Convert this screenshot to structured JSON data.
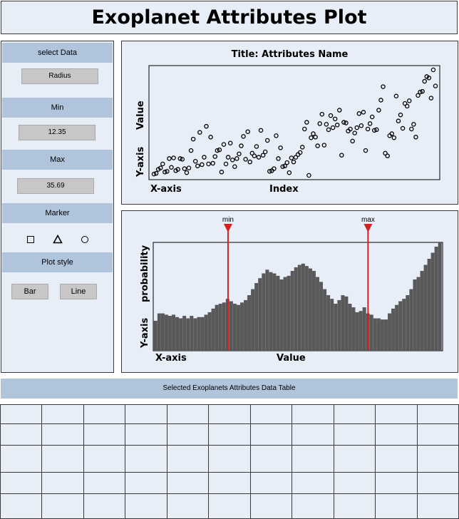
{
  "app": {
    "title": "Exoplanet Attributes Plot"
  },
  "controls": {
    "select_data": {
      "label": "select Data",
      "value": "Radius"
    },
    "min": {
      "label": "Min",
      "value": "12.35"
    },
    "max": {
      "label": "Max",
      "value": "35.69"
    },
    "marker": {
      "label": "Marker",
      "options": [
        "square-icon",
        "triangle-icon",
        "circle-icon"
      ]
    },
    "plot_style": {
      "label": "Plot style",
      "options": [
        "Bar",
        "Line"
      ]
    }
  },
  "scatter": {
    "title": "Title: Attributes Name",
    "xlabel_left": "X-axis",
    "xlabel_center": "Index",
    "ylabel_lower": "Y-axis",
    "ylabel_upper": "Value"
  },
  "histogram": {
    "xlabel_left": "X-axis",
    "xlabel_center": "Value",
    "ylabel_lower": "Y-axis",
    "ylabel_upper": "probability",
    "min_marker": "min",
    "max_marker": "max",
    "marker_color": "#d62020"
  },
  "table": {
    "title": "Selected Exoplanets Attributes Data Table",
    "rows": 5,
    "columns": 11
  },
  "chart_data": [
    {
      "type": "scatter",
      "title": "Title: Attributes Name",
      "xlabel": "Index",
      "ylabel": "Value",
      "marker": "circle",
      "points": [
        [
          1,
          5
        ],
        [
          2,
          6
        ],
        [
          3,
          12
        ],
        [
          4,
          14
        ],
        [
          5,
          20
        ],
        [
          6,
          8
        ],
        [
          7,
          9
        ],
        [
          8,
          28
        ],
        [
          9,
          15
        ],
        [
          10,
          29
        ],
        [
          11,
          10
        ],
        [
          12,
          12
        ],
        [
          13,
          28
        ],
        [
          14,
          27
        ],
        [
          15,
          13
        ],
        [
          16,
          7
        ],
        [
          17,
          14
        ],
        [
          18,
          40
        ],
        [
          19,
          57
        ],
        [
          20,
          24
        ],
        [
          21,
          17
        ],
        [
          22,
          67
        ],
        [
          23,
          19
        ],
        [
          24,
          30
        ],
        [
          25,
          76
        ],
        [
          26,
          20
        ],
        [
          27,
          60
        ],
        [
          28,
          21
        ],
        [
          29,
          31
        ],
        [
          30,
          40
        ],
        [
          31,
          41
        ],
        [
          32,
          8
        ],
        [
          33,
          49
        ],
        [
          34,
          20
        ],
        [
          35,
          30
        ],
        [
          36,
          51
        ],
        [
          37,
          26
        ],
        [
          38,
          16
        ],
        [
          39,
          28
        ],
        [
          40,
          35
        ],
        [
          41,
          47
        ],
        [
          42,
          61
        ],
        [
          43,
          27
        ],
        [
          44,
          68
        ],
        [
          45,
          23
        ],
        [
          46,
          36
        ],
        [
          47,
          32
        ],
        [
          48,
          46
        ],
        [
          49,
          30
        ],
        [
          50,
          70
        ],
        [
          51,
          33
        ],
        [
          52,
          38
        ],
        [
          53,
          55
        ],
        [
          54,
          9
        ],
        [
          55,
          10
        ],
        [
          56,
          13
        ],
        [
          57,
          62
        ],
        [
          58,
          28
        ],
        [
          59,
          44
        ],
        [
          60,
          16
        ],
        [
          61,
          17
        ],
        [
          62,
          22
        ],
        [
          63,
          7
        ],
        [
          64,
          29
        ],
        [
          65,
          23
        ],
        [
          66,
          30
        ],
        [
          67,
          34
        ],
        [
          68,
          37
        ],
        [
          69,
          45
        ],
        [
          70,
          72
        ],
        [
          71,
          82
        ],
        [
          72,
          3
        ],
        [
          73,
          59
        ],
        [
          74,
          65
        ],
        [
          75,
          60
        ],
        [
          76,
          47
        ],
        [
          77,
          80
        ],
        [
          78,
          94
        ],
        [
          79,
          48
        ],
        [
          80,
          79
        ],
        [
          81,
          71
        ],
        [
          82,
          92
        ],
        [
          83,
          74
        ],
        [
          84,
          87
        ],
        [
          85,
          78
        ],
        [
          86,
          100
        ],
        [
          87,
          33
        ],
        [
          88,
          82
        ],
        [
          89,
          81
        ],
        [
          90,
          69
        ],
        [
          91,
          72
        ],
        [
          92,
          54
        ],
        [
          93,
          66
        ],
        [
          94,
          74
        ],
        [
          95,
          95
        ],
        [
          96,
          77
        ],
        [
          97,
          97
        ],
        [
          98,
          40
        ],
        [
          99,
          72
        ],
        [
          100,
          80
        ],
        [
          101,
          90
        ],
        [
          102,
          70
        ],
        [
          103,
          71
        ],
        [
          104,
          100
        ],
        [
          105,
          115
        ],
        [
          106,
          135
        ],
        [
          107,
          36
        ],
        [
          108,
          32
        ],
        [
          109,
          62
        ],
        [
          110,
          65
        ],
        [
          111,
          59
        ],
        [
          112,
          121
        ],
        [
          113,
          84
        ],
        [
          114,
          93
        ],
        [
          115,
          73
        ],
        [
          116,
          110
        ],
        [
          117,
          106
        ],
        [
          118,
          114
        ],
        [
          119,
          72
        ],
        [
          120,
          79
        ],
        [
          121,
          60
        ],
        [
          122,
          122
        ],
        [
          123,
          127
        ],
        [
          124,
          128
        ],
        [
          125,
          143
        ],
        [
          126,
          150
        ],
        [
          127,
          148
        ],
        [
          128,
          118
        ],
        [
          129,
          160
        ],
        [
          130,
          136
        ]
      ]
    },
    {
      "type": "bar",
      "xlabel": "Value",
      "ylabel": "probability",
      "markers": [
        {
          "label": "min",
          "value": 12.35
        },
        {
          "label": "max",
          "value": 35.69
        }
      ],
      "x": [
        1,
        2,
        3,
        4,
        5,
        6,
        7,
        8,
        9,
        10,
        11,
        12,
        13,
        14,
        15,
        16,
        17,
        18,
        19,
        20,
        21,
        22,
        23,
        24,
        25,
        26,
        27,
        28,
        29,
        30,
        31,
        32,
        33,
        34,
        35,
        36,
        37,
        38,
        39,
        40,
        41,
        42,
        43,
        44,
        45,
        46,
        47,
        48,
        49,
        50,
        51,
        52,
        53,
        54,
        55,
        56,
        57,
        58,
        59,
        60,
        61,
        62,
        63,
        64,
        65,
        66,
        67,
        68,
        69,
        70,
        71,
        72,
        73,
        74,
        75,
        76,
        77,
        78,
        79,
        80
      ],
      "values": [
        24,
        30,
        30,
        29,
        28,
        29,
        27,
        26,
        28,
        26,
        28,
        26,
        27,
        27,
        29,
        31,
        34,
        37,
        38,
        39,
        42,
        40,
        38,
        37,
        39,
        41,
        45,
        50,
        55,
        59,
        63,
        66,
        64,
        63,
        61,
        58,
        60,
        61,
        65,
        68,
        70,
        71,
        69,
        67,
        65,
        60,
        56,
        50,
        45,
        42,
        38,
        41,
        45,
        44,
        38,
        35,
        31,
        32,
        35,
        30,
        29,
        26,
        26,
        25,
        25,
        30,
        34,
        37,
        40,
        42,
        45,
        50,
        58,
        60,
        65,
        70,
        75,
        80,
        85,
        88
      ]
    }
  ]
}
